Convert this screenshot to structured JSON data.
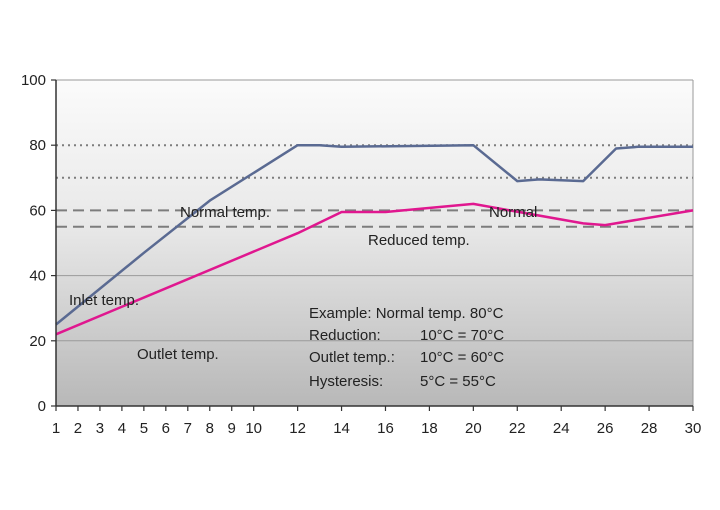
{
  "chart_data": {
    "type": "line",
    "xlim": [
      1,
      30
    ],
    "ylim": [
      0,
      100
    ],
    "x_ticks": [
      "1",
      "2",
      "3",
      "4",
      "5",
      "6",
      "7",
      "8",
      "9",
      "10",
      "12",
      "14",
      "16",
      "18",
      "20",
      "22",
      "24",
      "26",
      "28",
      "30"
    ],
    "y_ticks": [
      "0",
      "20",
      "40",
      "60",
      "80",
      "100"
    ],
    "grid": true,
    "background": "gradient light gray to gray",
    "series": [
      {
        "name": "Inlet temp.",
        "color": "#5a6a92",
        "points": [
          [
            1,
            25
          ],
          [
            5,
            47
          ],
          [
            8,
            63
          ],
          [
            12,
            80
          ],
          [
            13,
            80
          ],
          [
            14,
            79.5
          ],
          [
            20,
            80
          ],
          [
            22,
            69
          ],
          [
            23,
            69.5
          ],
          [
            25,
            69
          ],
          [
            26.5,
            79
          ],
          [
            27.5,
            79.5
          ],
          [
            30,
            79.5
          ]
        ]
      },
      {
        "name": "Outlet temp.",
        "color": "#e0178f",
        "points": [
          [
            1,
            22
          ],
          [
            12,
            53
          ],
          [
            14,
            59.5
          ],
          [
            16,
            59.5
          ],
          [
            20,
            62
          ],
          [
            25,
            56
          ],
          [
            26,
            55.5
          ],
          [
            30,
            60
          ]
        ]
      }
    ],
    "reference_lines": [
      {
        "value": 80,
        "style": "dotted"
      },
      {
        "value": 70,
        "style": "dotted"
      },
      {
        "value": 60,
        "style": "dashed"
      },
      {
        "value": 55,
        "style": "dashed"
      }
    ],
    "annotations": {
      "normal_temp": "Normal temp.",
      "normal": "Normal",
      "reduced_temp": "Reduced temp.",
      "inlet_temp": "Inlet temp.",
      "outlet_temp": "Outlet temp.",
      "example_line1": "Example: Normal temp. 80°C",
      "example_line2_label": "Reduction:",
      "example_line2_value": "10°C = 70°C",
      "example_line3_label": "Outlet temp.:",
      "example_line3_value": "10°C = 60°C",
      "example_line4_label": "Hysteresis:",
      "example_line4_value": "5°C = 55°C"
    }
  }
}
